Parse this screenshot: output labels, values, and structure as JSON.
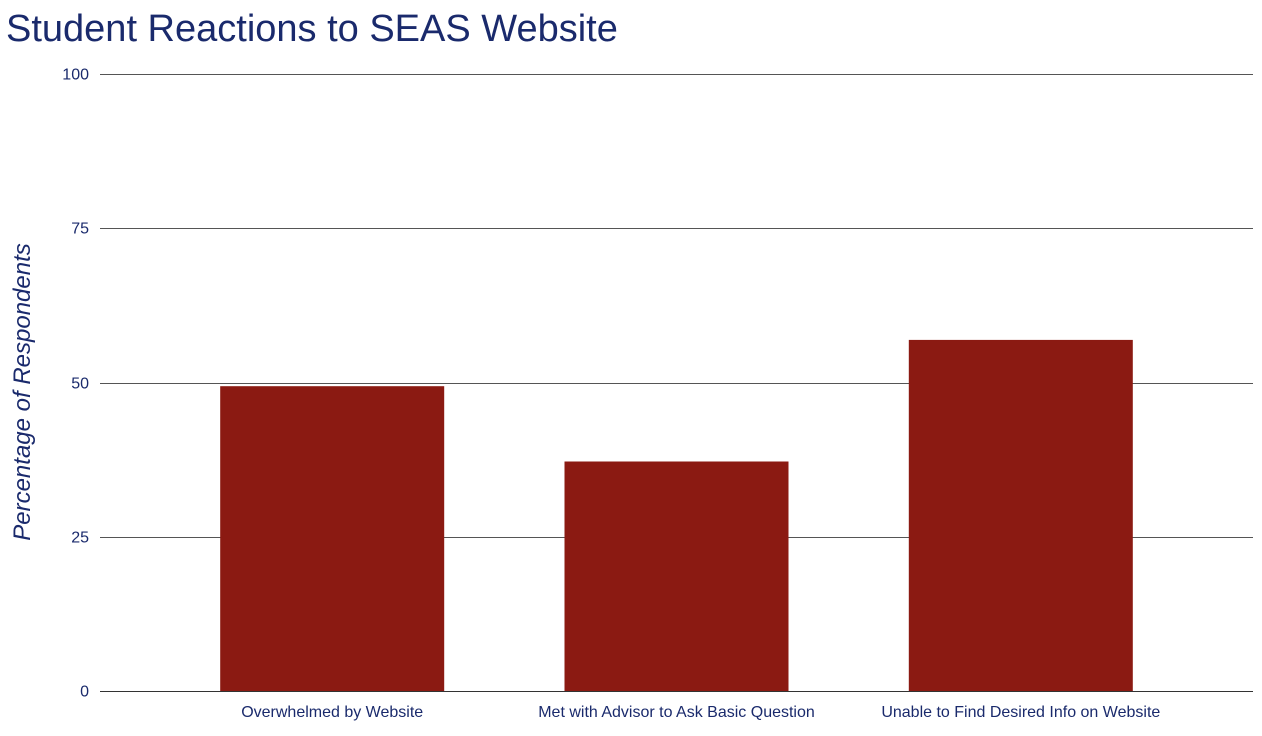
{
  "colors": {
    "bar": "#8b1a12",
    "text": "#1a2a6c",
    "grid": "#555555",
    "baseline": "#333333"
  },
  "chart_data": {
    "type": "bar",
    "title": "Student Reactions to SEAS Website",
    "xlabel": "",
    "ylabel": "Percentage of Respondents",
    "categories": [
      "Overwhelmed by Website",
      "Met with Advisor to Ask Basic Question",
      "Unable to Find Desired Info on Website"
    ],
    "values": [
      49.4,
      37.2,
      56.9
    ],
    "ylim": [
      0,
      100
    ],
    "yticks": [
      0,
      25,
      50,
      75,
      100
    ],
    "grid": true,
    "legend": "none"
  }
}
